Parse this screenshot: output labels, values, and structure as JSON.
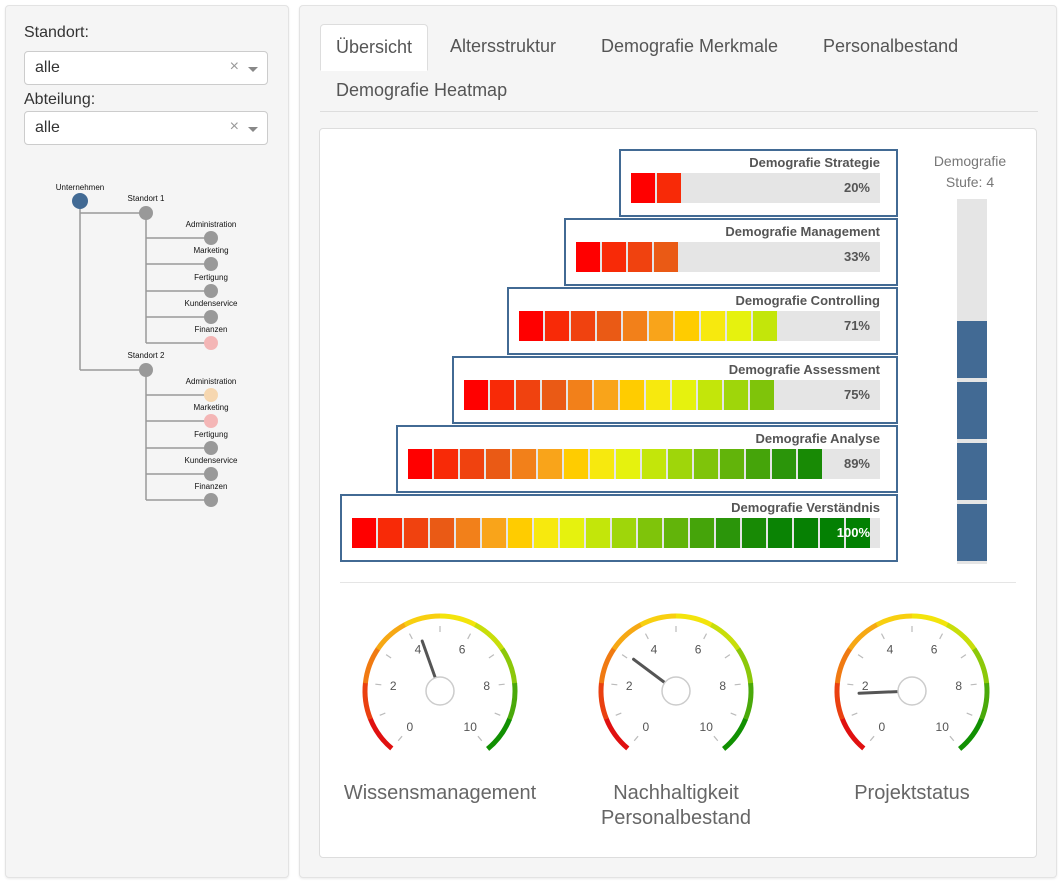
{
  "sidebar": {
    "standort_label": "Standort:",
    "standort_value": "alle",
    "abteilung_label": "Abteilung:",
    "abteilung_value": "alle",
    "clear_symbol": "×",
    "tree": {
      "root": "Unternehmen",
      "locations": [
        {
          "name": "Standort 1",
          "departments": [
            "Administration",
            "Marketing",
            "Fertigung",
            "Kundenservice",
            "Finanzen"
          ],
          "dept_colors": [
            "#999999",
            "#999999",
            "#999999",
            "#999999",
            "#f4b6b6"
          ]
        },
        {
          "name": "Standort 2",
          "departments": [
            "Administration",
            "Marketing",
            "Fertigung",
            "Kundenservice",
            "Finanzen"
          ],
          "dept_colors": [
            "#f6d7b0",
            "#f4b6b6",
            "#999999",
            "#999999",
            "#999999"
          ]
        }
      ],
      "root_color": "#426a94",
      "node_color": "#999999"
    }
  },
  "tabs": [
    {
      "label": "Übersicht",
      "active": true
    },
    {
      "label": "Altersstruktur",
      "active": false
    },
    {
      "label": "Demografie Merkmale",
      "active": false
    },
    {
      "label": "Personalbestand",
      "active": false
    },
    {
      "label": "Demografie Heatmap",
      "active": false
    }
  ],
  "bars": [
    {
      "title": "Demografie Strategie",
      "pct": "20%",
      "cells": 2
    },
    {
      "title": "Demografie Management",
      "pct": "33%",
      "cells": 4
    },
    {
      "title": "Demografie Controlling",
      "pct": "71%",
      "cells": 10
    },
    {
      "title": "Demografie Assessment",
      "pct": "75%",
      "cells": 12
    },
    {
      "title": "Demografie Analyse",
      "pct": "89%",
      "cells": 16
    },
    {
      "title": "Demografie Verständnis",
      "pct": "100%",
      "cells": 20
    }
  ],
  "gradient_colors": [
    "#ff0000",
    "#f82a07",
    "#f0420f",
    "#ea5a15",
    "#f2801a",
    "#f9a41a",
    "#ffcc00",
    "#f7e90e",
    "#e6f20e",
    "#c3e60a",
    "#9fd60a",
    "#7fc40a",
    "#62b40a",
    "#45a40a",
    "#2b950a",
    "#188a05",
    "#0a8304",
    "#068003",
    "#048003",
    "#028002"
  ],
  "stufe": {
    "label": "Demografie Stufe: 4",
    "level": 4,
    "max": 6,
    "color": "#426a94"
  },
  "gauges": [
    {
      "label": "Wissensmanagement",
      "value": 4.3
    },
    {
      "label": "Nachhaltigkeit Personalbestand",
      "value": 3.1
    },
    {
      "label": "Projektstatus",
      "value": 1.7
    }
  ],
  "gauge_scale": {
    "min": 0,
    "max": 10,
    "ticks": [
      "0",
      "2",
      "4",
      "6",
      "8",
      "10"
    ]
  }
}
